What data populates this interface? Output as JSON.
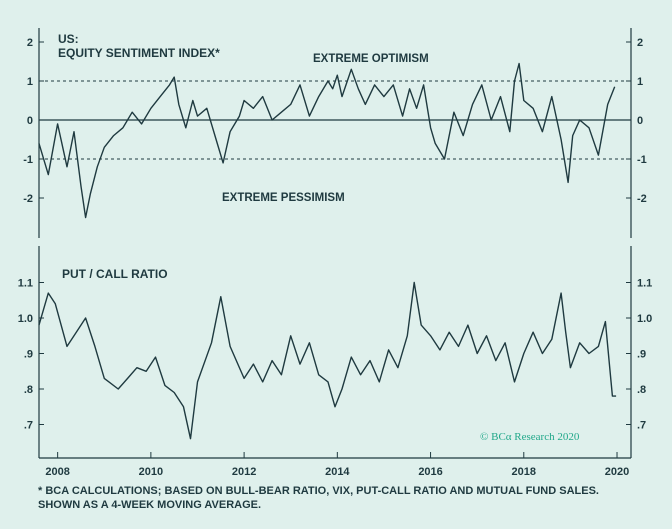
{
  "chart_data": [
    {
      "type": "line",
      "title": "US:",
      "subtitle": "EQUITY SENTIMENT INDEX*",
      "ylim": [
        -3,
        2.5
      ],
      "yticks": [
        -2,
        -1,
        0,
        1,
        2
      ],
      "reference_lines": [
        {
          "y": 1,
          "style": "dashed"
        },
        {
          "y": -1,
          "style": "dashed"
        },
        {
          "y": 0,
          "style": "solid"
        }
      ],
      "annotations": [
        "EXTREME OPTIMISM",
        "EXTREME PESSIMISM"
      ],
      "series": [
        {
          "name": "Equity Sentiment Index",
          "x": [
            2007.6,
            2007.8,
            2008.0,
            2008.2,
            2008.35,
            2008.5,
            2008.6,
            2008.7,
            2008.85,
            2009.0,
            2009.2,
            2009.4,
            2009.6,
            2009.8,
            2010.0,
            2010.2,
            2010.4,
            2010.5,
            2010.6,
            2010.75,
            2010.9,
            2011.0,
            2011.2,
            2011.4,
            2011.55,
            2011.7,
            2011.9,
            2012.0,
            2012.2,
            2012.4,
            2012.6,
            2012.8,
            2013.0,
            2013.2,
            2013.4,
            2013.6,
            2013.8,
            2013.9,
            2014.0,
            2014.1,
            2014.3,
            2014.45,
            2014.6,
            2014.8,
            2015.0,
            2015.2,
            2015.4,
            2015.55,
            2015.7,
            2015.85,
            2016.0,
            2016.1,
            2016.3,
            2016.5,
            2016.7,
            2016.9,
            2017.1,
            2017.3,
            2017.5,
            2017.7,
            2017.8,
            2017.9,
            2018.0,
            2018.2,
            2018.4,
            2018.6,
            2018.8,
            2018.95,
            2019.05,
            2019.2,
            2019.4,
            2019.6,
            2019.8,
            2019.95
          ],
          "values": [
            -0.6,
            -1.4,
            -0.1,
            -1.2,
            -0.3,
            -1.7,
            -2.5,
            -1.9,
            -1.2,
            -0.7,
            -0.4,
            -0.2,
            0.2,
            -0.1,
            0.3,
            0.6,
            0.9,
            1.1,
            0.4,
            -0.2,
            0.5,
            0.1,
            0.3,
            -0.5,
            -1.1,
            -0.3,
            0.1,
            0.5,
            0.3,
            0.6,
            0.0,
            0.2,
            0.4,
            0.9,
            0.1,
            0.6,
            1.0,
            0.8,
            1.15,
            0.6,
            1.3,
            0.8,
            0.4,
            0.9,
            0.6,
            0.9,
            0.1,
            0.8,
            0.3,
            0.9,
            -0.2,
            -0.6,
            -1.0,
            0.2,
            -0.4,
            0.4,
            0.9,
            0.0,
            0.6,
            -0.3,
            1.0,
            1.45,
            0.5,
            0.3,
            -0.3,
            0.6,
            -0.5,
            -1.6,
            -0.4,
            0.0,
            -0.2,
            -0.9,
            0.4,
            0.85
          ]
        }
      ]
    },
    {
      "type": "line",
      "title": "PUT / CALL RATIO",
      "ylim": [
        0.62,
        1.16
      ],
      "yticks": [
        0.7,
        0.8,
        0.9,
        1.0,
        1.1
      ],
      "ytick_labels": [
        ".7",
        ".8",
        ".9",
        "1.0",
        "1.1"
      ],
      "series": [
        {
          "name": "Put / Call Ratio",
          "x": [
            2007.6,
            2007.8,
            2007.95,
            2008.2,
            2008.4,
            2008.6,
            2008.8,
            2009.0,
            2009.3,
            2009.5,
            2009.7,
            2009.9,
            2010.1,
            2010.3,
            2010.5,
            2010.7,
            2010.85,
            2011.0,
            2011.3,
            2011.5,
            2011.7,
            2012.0,
            2012.2,
            2012.4,
            2012.6,
            2012.8,
            2013.0,
            2013.2,
            2013.4,
            2013.6,
            2013.8,
            2013.95,
            2014.1,
            2014.3,
            2014.5,
            2014.7,
            2014.9,
            2015.1,
            2015.3,
            2015.5,
            2015.65,
            2015.8,
            2016.0,
            2016.2,
            2016.4,
            2016.6,
            2016.8,
            2017.0,
            2017.2,
            2017.4,
            2017.6,
            2017.8,
            2018.0,
            2018.2,
            2018.4,
            2018.6,
            2018.8,
            2018.9,
            2019.0,
            2019.2,
            2019.4,
            2019.6,
            2019.75,
            2019.9,
            2019.98
          ],
          "values": [
            0.98,
            1.07,
            1.04,
            0.92,
            0.96,
            1.0,
            0.92,
            0.83,
            0.8,
            0.83,
            0.86,
            0.85,
            0.89,
            0.81,
            0.79,
            0.75,
            0.66,
            0.82,
            0.93,
            1.06,
            0.92,
            0.83,
            0.87,
            0.82,
            0.88,
            0.84,
            0.95,
            0.87,
            0.93,
            0.84,
            0.82,
            0.75,
            0.8,
            0.89,
            0.84,
            0.88,
            0.82,
            0.91,
            0.86,
            0.95,
            1.1,
            0.98,
            0.95,
            0.91,
            0.96,
            0.92,
            0.98,
            0.9,
            0.95,
            0.88,
            0.93,
            0.82,
            0.9,
            0.96,
            0.9,
            0.94,
            1.07,
            0.96,
            0.86,
            0.93,
            0.9,
            0.92,
            0.99,
            0.78,
            0.78
          ]
        }
      ]
    }
  ],
  "x_axis": {
    "ticks": [
      "2008",
      "2010",
      "2012",
      "2014",
      "2016",
      "2018",
      "2020"
    ]
  },
  "credit": "© BCα Research 2020",
  "footnote": {
    "line1": "* BCA CALCULATIONS; BASED ON BULL-BEAR RATIO, VIX, PUT-CALL RATIO AND MUTUAL FUND SALES.",
    "line2": "SHOWN AS A 4-WEEK MOVING AVERAGE."
  },
  "colors": {
    "line": "#1f3a40",
    "background": "#dff0ec",
    "credit": "#22a88a"
  }
}
